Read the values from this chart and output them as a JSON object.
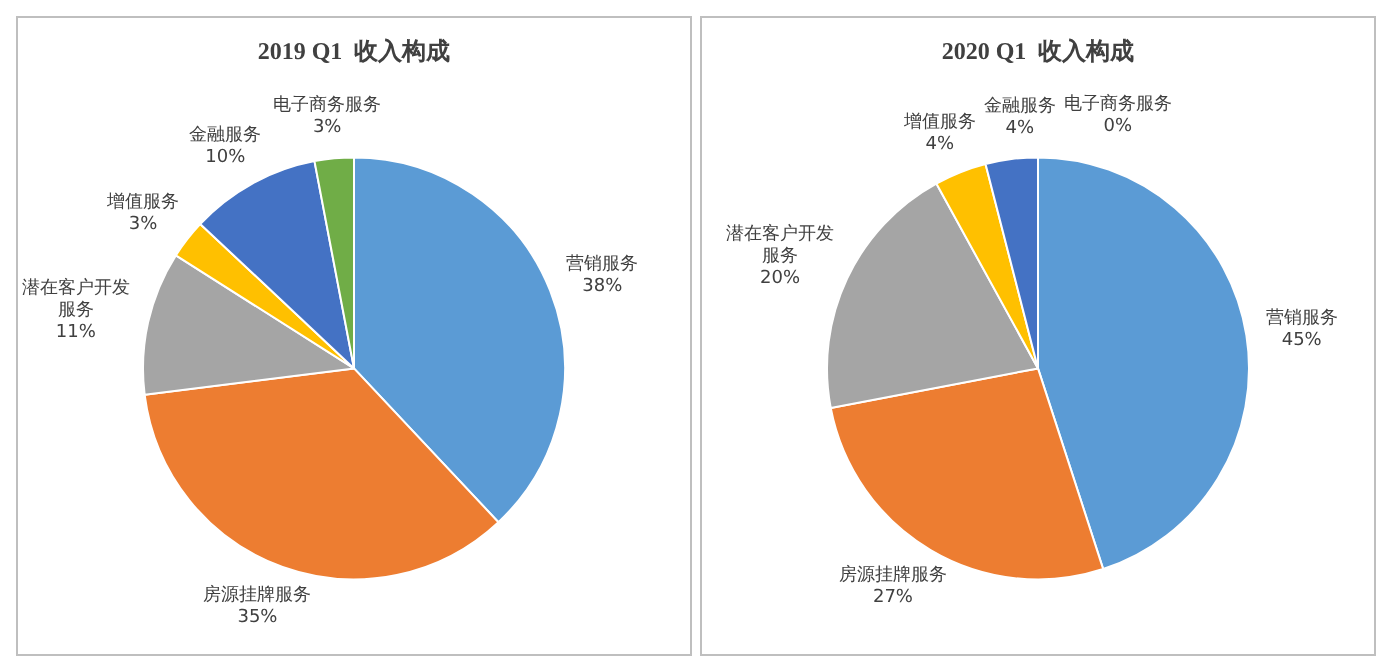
{
  "chart_data": [
    {
      "type": "pie",
      "title": "2019 Q1  收入构成",
      "categories": [
        "营销服务",
        "房源挂牌服务",
        "潜在客户开发服务",
        "增值服务",
        "金融服务",
        "电子商务服务"
      ],
      "values": [
        38,
        35,
        11,
        3,
        10,
        3
      ],
      "colors": [
        "#5b9bd5",
        "#ed7d31",
        "#a5a5a5",
        "#ffc000",
        "#4472c4",
        "#70ad47"
      ],
      "value_labels": [
        "38%",
        "35%",
        "11%",
        "3%",
        "10%",
        "3%"
      ]
    },
    {
      "type": "pie",
      "title": "2020 Q1  收入构成",
      "categories": [
        "营销服务",
        "房源挂牌服务",
        "潜在客户开发服务",
        "增值服务",
        "金融服务",
        "电子商务服务"
      ],
      "values": [
        45,
        27,
        20,
        4,
        4,
        0
      ],
      "colors": [
        "#5b9bd5",
        "#ed7d31",
        "#a5a5a5",
        "#ffc000",
        "#4472c4",
        "#70ad47"
      ],
      "value_labels": [
        "45%",
        "27%",
        "20%",
        "4%",
        "4%",
        "0%"
      ]
    }
  ]
}
